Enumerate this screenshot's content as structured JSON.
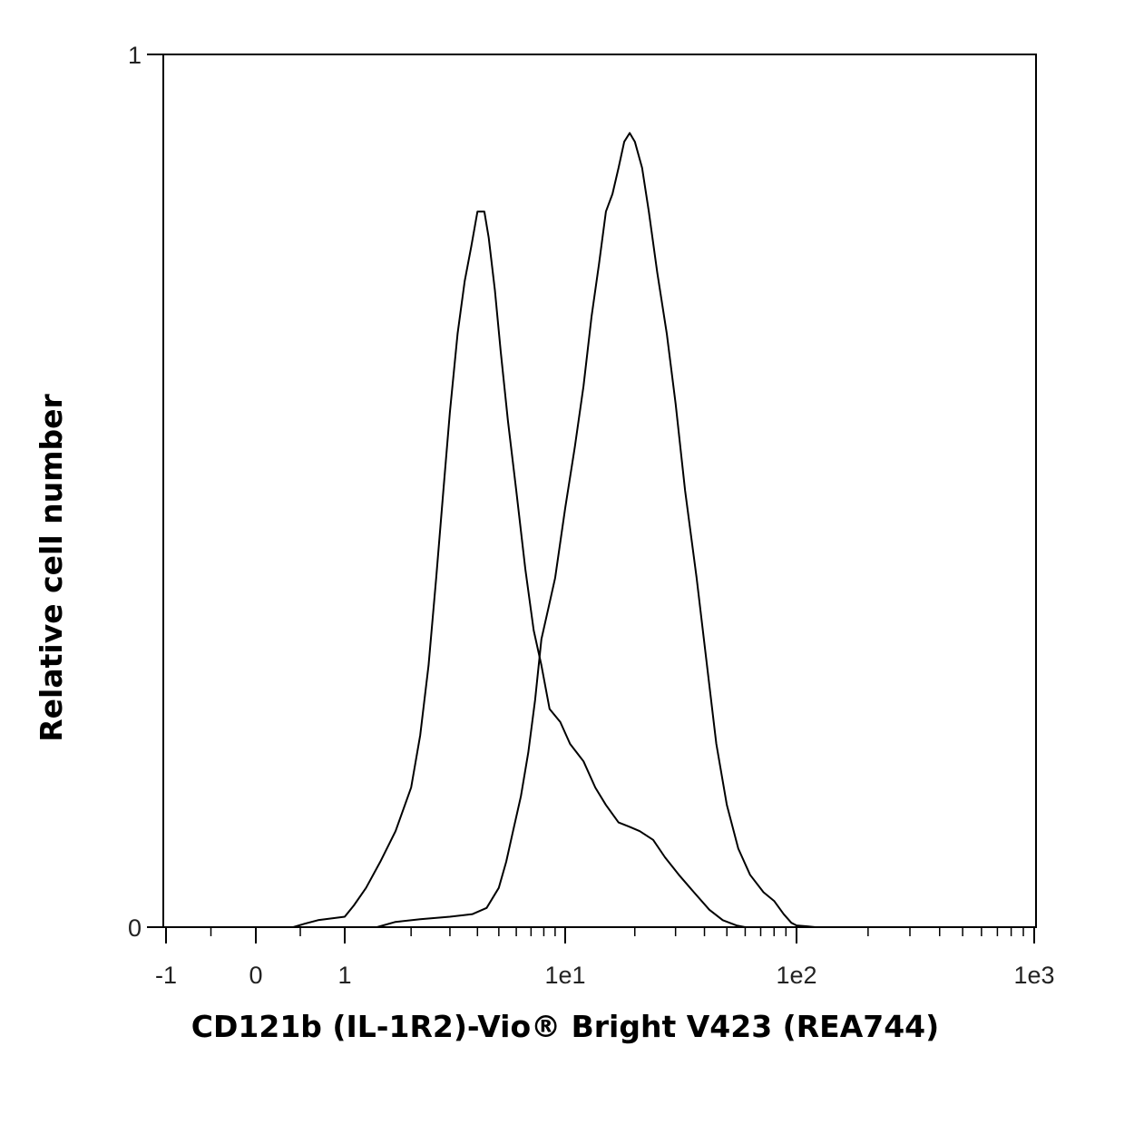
{
  "chart_data": {
    "type": "line",
    "title": "",
    "xlabel": "CD121b (IL-1R2)-Vio® Bright V423 (REA744)",
    "ylabel": "Relative cell number",
    "x_scale": "biexponential",
    "x_ticks": [
      {
        "value": -1,
        "label": "-1"
      },
      {
        "value": 0,
        "label": "0"
      },
      {
        "value": 1,
        "label": "1"
      },
      {
        "value": 10,
        "label": "1e1"
      },
      {
        "value": 100,
        "label": "1e2"
      },
      {
        "value": 1000,
        "label": "1e3"
      }
    ],
    "y_ticks": [
      {
        "value": 0,
        "label": "0"
      },
      {
        "value": 1,
        "label": "1"
      }
    ],
    "xlim": [
      -1,
      1000
    ],
    "ylim": [
      0,
      1
    ],
    "grid": false,
    "series": [
      {
        "color": "#000000",
        "points": [
          [
            0.42,
            0.0
          ],
          [
            0.55,
            0.004
          ],
          [
            0.7,
            0.008
          ],
          [
            0.85,
            0.01
          ],
          [
            1.0,
            0.012
          ],
          [
            1.1,
            0.025
          ],
          [
            1.25,
            0.045
          ],
          [
            1.45,
            0.075
          ],
          [
            1.7,
            0.11
          ],
          [
            2.0,
            0.16
          ],
          [
            2.2,
            0.22
          ],
          [
            2.4,
            0.3
          ],
          [
            2.6,
            0.4
          ],
          [
            2.8,
            0.5
          ],
          [
            3.0,
            0.59
          ],
          [
            3.25,
            0.68
          ],
          [
            3.5,
            0.74
          ],
          [
            3.75,
            0.78
          ],
          [
            4.0,
            0.82
          ],
          [
            4.3,
            0.82
          ],
          [
            4.5,
            0.79
          ],
          [
            4.8,
            0.73
          ],
          [
            5.1,
            0.66
          ],
          [
            5.5,
            0.58
          ],
          [
            6.0,
            0.5
          ],
          [
            6.6,
            0.41
          ],
          [
            7.2,
            0.34
          ],
          [
            7.8,
            0.3
          ],
          [
            8.5,
            0.25
          ],
          [
            9.5,
            0.235
          ],
          [
            10.5,
            0.21
          ],
          [
            12.0,
            0.19
          ],
          [
            13.5,
            0.16
          ],
          [
            15.0,
            0.14
          ],
          [
            17.0,
            0.12
          ],
          [
            19.0,
            0.115
          ],
          [
            21.0,
            0.11
          ],
          [
            24.0,
            0.1
          ],
          [
            27.0,
            0.08
          ],
          [
            31.0,
            0.06
          ],
          [
            36.0,
            0.04
          ],
          [
            42.0,
            0.02
          ],
          [
            48.0,
            0.008
          ],
          [
            55.0,
            0.002
          ],
          [
            60.0,
            0.0
          ]
        ]
      },
      {
        "color": "#000000",
        "points": [
          [
            1.4,
            0.0
          ],
          [
            1.7,
            0.006
          ],
          [
            2.2,
            0.009
          ],
          [
            3.0,
            0.012
          ],
          [
            3.8,
            0.015
          ],
          [
            4.4,
            0.022
          ],
          [
            5.0,
            0.045
          ],
          [
            5.4,
            0.075
          ],
          [
            5.8,
            0.11
          ],
          [
            6.3,
            0.15
          ],
          [
            6.8,
            0.2
          ],
          [
            7.3,
            0.26
          ],
          [
            7.8,
            0.33
          ],
          [
            8.3,
            0.36
          ],
          [
            9.0,
            0.4
          ],
          [
            10.0,
            0.48
          ],
          [
            11.0,
            0.55
          ],
          [
            12.0,
            0.62
          ],
          [
            13.0,
            0.7
          ],
          [
            14.0,
            0.76
          ],
          [
            15.0,
            0.82
          ],
          [
            16.0,
            0.84
          ],
          [
            17.0,
            0.87
          ],
          [
            18.0,
            0.9
          ],
          [
            19.0,
            0.91
          ],
          [
            20.0,
            0.9
          ],
          [
            21.5,
            0.87
          ],
          [
            23.0,
            0.82
          ],
          [
            25.0,
            0.75
          ],
          [
            27.5,
            0.68
          ],
          [
            30.0,
            0.6
          ],
          [
            33.0,
            0.5
          ],
          [
            37.0,
            0.4
          ],
          [
            41.0,
            0.3
          ],
          [
            45.0,
            0.21
          ],
          [
            50.0,
            0.14
          ],
          [
            56.0,
            0.09
          ],
          [
            63.0,
            0.06
          ],
          [
            72.0,
            0.04
          ],
          [
            80.0,
            0.03
          ],
          [
            88.0,
            0.015
          ],
          [
            95.0,
            0.005
          ],
          [
            100.0,
            0.002
          ],
          [
            110.0,
            0.001
          ],
          [
            120.0,
            0.0
          ]
        ]
      }
    ]
  }
}
